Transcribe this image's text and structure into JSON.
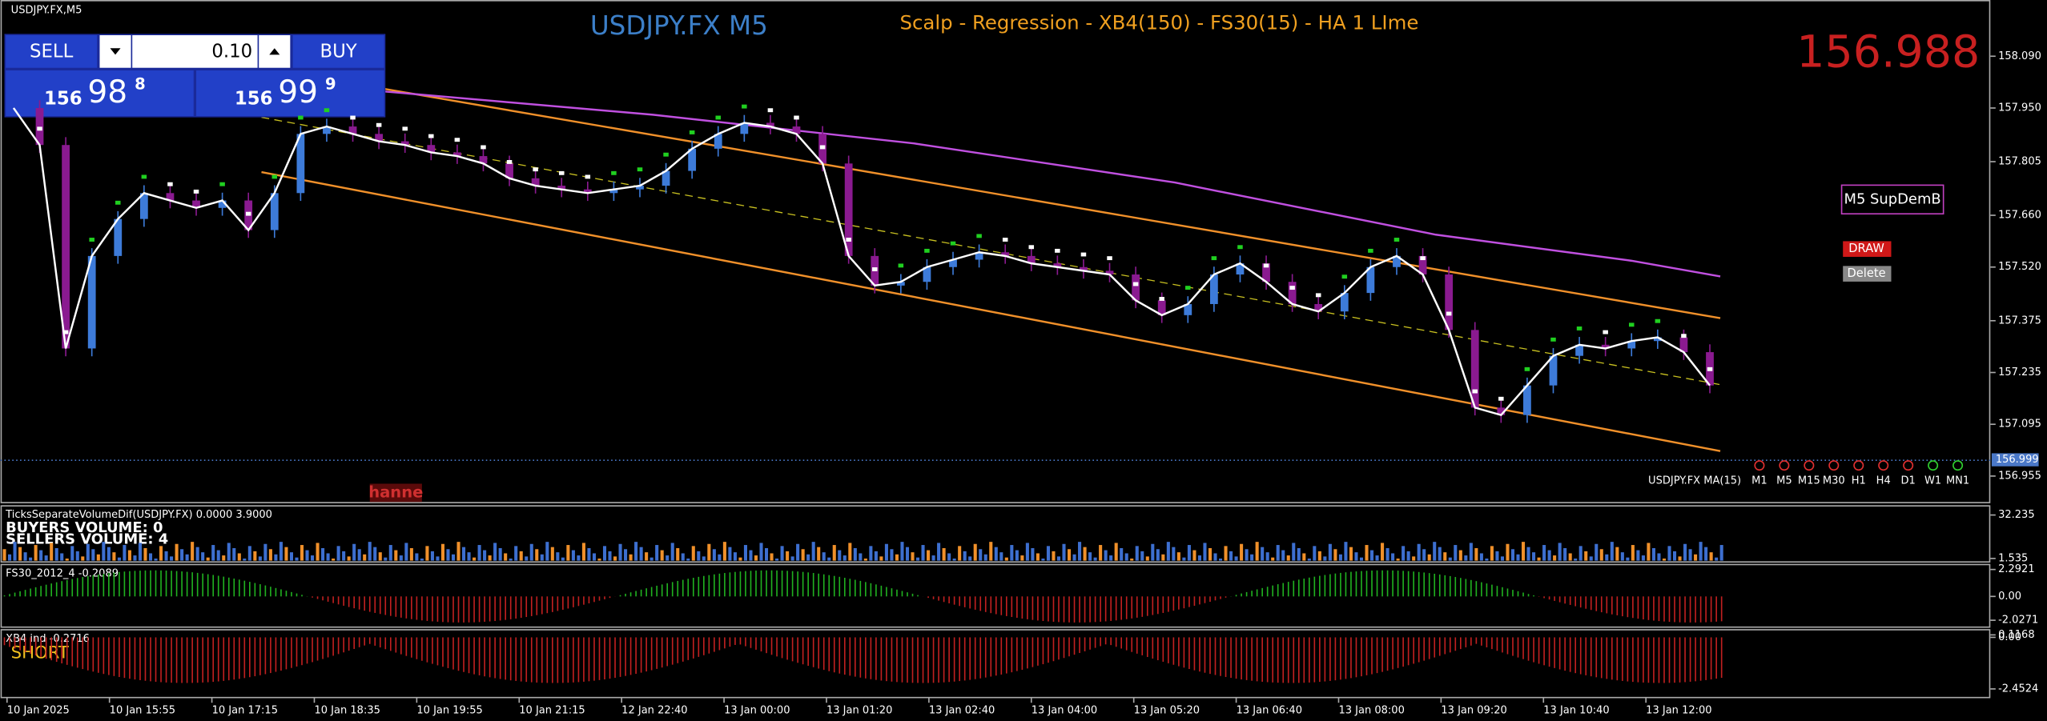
{
  "window": {
    "symbol_label": "USDJPY.FX,M5",
    "title": "USDJPY.FX M5",
    "indicator_title": "Scalp - Regression - XB4(150) - FS30(15) - HA  1 LIme",
    "big_price": "156.988",
    "supdem_label": "M5 SupDemB",
    "draw_button": "DRAW",
    "delete_button": "Delete",
    "ma_label": "USDJPY.FX MA(15)",
    "channel_label": "hanne",
    "timeframes": [
      "M1",
      "M5",
      "M15",
      "M30",
      "H1",
      "H4",
      "D1",
      "W1",
      "MN1"
    ]
  },
  "trade_panel": {
    "sell": "SELL",
    "buy": "BUY",
    "lot": "0.10",
    "bid": {
      "big": "156",
      "mid": "98",
      "small": "8"
    },
    "ask": {
      "big": "156",
      "mid": "99",
      "small": "9"
    }
  },
  "chart_data": {
    "type": "candlestick",
    "closes": [
      157.95,
      157.85,
      157.3,
      157.55,
      157.65,
      157.72,
      157.7,
      157.68,
      157.7,
      157.62,
      157.72,
      157.88,
      157.9,
      157.88,
      157.86,
      157.85,
      157.83,
      157.82,
      157.8,
      157.76,
      157.74,
      157.73,
      157.72,
      157.73,
      157.74,
      157.78,
      157.84,
      157.88,
      157.91,
      157.9,
      157.88,
      157.8,
      157.55,
      157.47,
      157.48,
      157.52,
      157.54,
      157.56,
      157.55,
      157.53,
      157.52,
      157.51,
      157.5,
      157.43,
      157.39,
      157.42,
      157.5,
      157.53,
      157.48,
      157.42,
      157.4,
      157.45,
      157.52,
      157.55,
      157.5,
      157.35,
      157.14,
      157.12,
      157.2,
      157.28,
      157.31,
      157.3,
      157.32,
      157.33,
      157.29,
      157.2
    ],
    "ylim": [
      156.885,
      158.242
    ],
    "yticks": [
      {
        "value": 158.09,
        "label": "158.090"
      },
      {
        "value": 157.95,
        "label": "157.950"
      },
      157.805,
      {
        "value": 157.66,
        "label": "157.660"
      },
      {
        "value": 157.52,
        "label": "157.520"
      },
      157.375,
      157.235,
      157.095,
      156.955
    ],
    "current_price": 156.999,
    "x": [
      "10 Jan 2025",
      "10 Jan 15:55",
      "10 Jan 17:15",
      "10 Jan 18:35",
      "10 Jan 19:55",
      "10 Jan 21:15",
      "12 Jan 22:40",
      "13 Jan 00:00",
      "13 Jan 01:20",
      "13 Jan 02:40",
      "13 Jan 04:00",
      "13 Jan 05:20",
      "13 Jan 06:40",
      "13 Jan 08:00",
      "13 Jan 09:20",
      "13 Jan 10:40",
      "13 Jan 12:00"
    ]
  },
  "volume_panel": {
    "label": "TicksSeparateVolumeDif(USDJPY.FX) 0.0000 3.9000",
    "buyers": "BUYERS VOLUME: 0",
    "sellers": "SELLERS VOLUME: 4",
    "ylim": [
      0,
      35
    ],
    "yticks": [
      32.235,
      1.535
    ]
  },
  "fs30_panel": {
    "label": "FS30_2012_4 -0.2089",
    "ylim": [
      -2.5,
      2.6
    ],
    "yticks": [
      2.2921,
      {
        "value": 0,
        "label": "0.00"
      },
      -2.0271
    ]
  },
  "xb4_panel": {
    "label": "XB4 ind -0.2716",
    "signal": "SHORT",
    "ylim": [
      -2.8,
      0.3
    ],
    "yticks": [
      {
        "value": 0,
        "label": "0.00"
      },
      0.1168,
      -2.4524
    ]
  }
}
